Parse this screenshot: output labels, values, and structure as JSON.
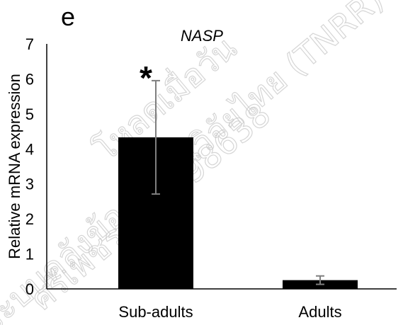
{
  "panel_label": "e",
  "watermark": {
    "line1": "ระบบคลังข้อมูลงานวิจัยไทย (TNRR)",
    "line2": "ศรีเพชร ID5398638",
    "line3": "โหลดเมื่อวัน",
    "color": "#c8c8c8"
  },
  "chart_data": {
    "type": "bar",
    "title": "NASP",
    "xlabel": "",
    "ylabel": "Relative mRNA expression",
    "categories": [
      "Sub-adults",
      "Adults"
    ],
    "values": [
      4.33,
      0.25
    ],
    "error": [
      1.62,
      0.12
    ],
    "ylim": [
      0,
      7
    ],
    "yticks": [
      0,
      1,
      2,
      3,
      4,
      5,
      6,
      7
    ],
    "ytick_labels": [
      "0",
      "1",
      "2",
      "3",
      "4",
      "5",
      "6",
      "7"
    ],
    "significance": [
      "*",
      ""
    ],
    "bar_color": "#000000",
    "error_color": "#7f7f7f",
    "grid": false,
    "legend": "none"
  }
}
